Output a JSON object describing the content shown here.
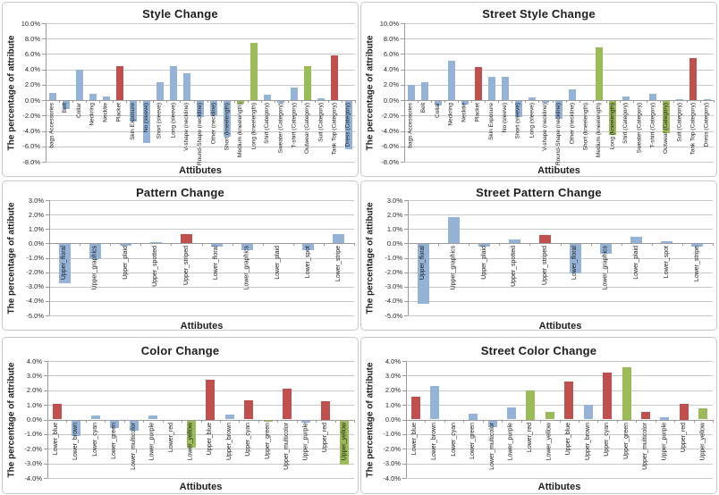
{
  "page": {
    "background": "#ffffff"
  },
  "palette": {
    "blue": "#95B3D7",
    "red": "#C0504D",
    "green": "#9BBB59",
    "grid": "#C9C9C9",
    "axis": "#9A9A9A",
    "panel_border": "#C9C9C9",
    "text": "#1F1F1F"
  },
  "chart_data": [
    {
      "id": "style-change",
      "type": "bar",
      "title": "Style Change",
      "ylabel": "The percentage of attribute",
      "xlabel": "Attibutes",
      "ylim": [
        -8,
        10
      ],
      "ytick_step": 2,
      "ytick_labels": [
        "10.0%",
        "8.0%",
        "6.0%",
        "4.0%",
        "2.0%",
        "0.0%",
        "-2.0%",
        "-4.0%",
        "-6.0%",
        "-8.0%"
      ],
      "grid": true,
      "legend": "none",
      "categories": [
        "bags Accessories",
        "Belt",
        "Collar",
        "Neckring",
        "Necktie",
        "Placket",
        "Skin Exposure",
        "No (sleeve)",
        "Short (sleeve)",
        "Long (sleeve)",
        "V-shape (neckline)",
        "Round-Shape (neckline)",
        "Other (neckline)",
        "Short (kneelength)",
        "Medium (kneelength)",
        "Long (kneelength)",
        "Shirt (Category)",
        "Sweater (Category)",
        "T-shirt (Category)",
        "Outwear (Category)",
        "Suit (Category)",
        "Tank Top (Category)",
        "Dress (Category)"
      ],
      "values": [
        0.9,
        -1.2,
        4.0,
        0.8,
        0.5,
        4.4,
        -2.8,
        -5.6,
        2.3,
        4.4,
        3.5,
        -2.2,
        -2.0,
        -4.7,
        -0.5,
        7.4,
        0.7,
        -0.4,
        1.6,
        4.4,
        0.3,
        5.8,
        -6.4
      ],
      "bar_colors": [
        "blue",
        "blue",
        "blue",
        "blue",
        "blue",
        "red",
        "blue",
        "blue",
        "blue",
        "blue",
        "blue",
        "blue",
        "blue",
        "blue",
        "green",
        "green",
        "blue",
        "blue",
        "blue",
        "green",
        "blue",
        "red",
        "blue"
      ]
    },
    {
      "id": "street-style-change",
      "type": "bar",
      "title": "Street Style Change",
      "ylabel": "The percentage of attribute",
      "xlabel": "Attibutes",
      "ylim": [
        -8,
        10
      ],
      "ytick_step": 2,
      "ytick_labels": [
        "10.0%",
        "8.0%",
        "6.0%",
        "4.0%",
        "2.0%",
        "0.0%",
        "-2.0%",
        "-4.0%",
        "-6.0%",
        "-8.0%"
      ],
      "grid": true,
      "legend": "none",
      "categories": [
        "bags Accessories",
        "Belt",
        "Collar",
        "Neckring",
        "Necktie",
        "Placket",
        "Skin Exposure",
        "No (sleeve)",
        "Short (sleeve)",
        "Long (sleeve)",
        "V-shape (neckline)",
        "Round-Shape (neckline)",
        "Other (neckline)",
        "Short (kneelength)",
        "Medium (kneelength)",
        "Long (kneelength)",
        "Shirt (Category)",
        "Sweater (Category)",
        "T-shirt (Category)",
        "Outwear (Category)",
        "Suit (Category)",
        "Tank Top (Category)",
        "Dress (Category)"
      ],
      "values": [
        2.0,
        2.3,
        -0.7,
        5.1,
        -0.6,
        4.3,
        3.0,
        3.0,
        -2.2,
        0.35,
        -0.4,
        -2.4,
        1.4,
        0.0,
        6.9,
        -4.5,
        0.45,
        -0.1,
        0.85,
        -4.3,
        0.15,
        5.5,
        0.1
      ],
      "bar_colors": [
        "blue",
        "blue",
        "blue",
        "blue",
        "blue",
        "red",
        "blue",
        "blue",
        "blue",
        "blue",
        "blue",
        "blue",
        "blue",
        "blue",
        "green",
        "green",
        "blue",
        "blue",
        "blue",
        "green",
        "blue",
        "red",
        "blue"
      ]
    },
    {
      "id": "pattern-change",
      "type": "bar",
      "title": "Pattern Change",
      "ylabel": "The percentage of attibute",
      "xlabel": "Attibutes",
      "ylim": [
        -5,
        3
      ],
      "ytick_step": 1,
      "ytick_labels": [
        "3.0%",
        "2.0%",
        "1.0%",
        "0.0%",
        "-1.0%",
        "-2.0%",
        "-3.0%",
        "-4.0%",
        "-5.0%"
      ],
      "grid": true,
      "legend": "none",
      "categories": [
        "Upper_floral",
        "Upper_graphics",
        "Upper_plaid",
        "Upper_spotted",
        "Upper_striped",
        "Lower_floral",
        "Lower_graphics",
        "Lower_plaid",
        "Lower_spot",
        "Lower_stripe"
      ],
      "values": [
        -2.8,
        -1.1,
        -0.15,
        0.1,
        0.65,
        -0.2,
        -0.5,
        -0.05,
        -0.5,
        0.65
      ],
      "bar_colors": [
        "blue",
        "blue",
        "blue",
        "blue",
        "red",
        "blue",
        "blue",
        "blue",
        "blue",
        "blue"
      ]
    },
    {
      "id": "street-pattern-change",
      "type": "bar",
      "title": "Street Pattern Change",
      "ylabel": "The percentage of attibute",
      "xlabel": "Attibutes",
      "ylim": [
        -5,
        3
      ],
      "ytick_step": 1,
      "ytick_labels": [
        "3.0%",
        "2.0%",
        "1.0%",
        "0.0%",
        "-1.0%",
        "-2.0%",
        "-3.0%",
        "-4.0%",
        "-5.0%"
      ],
      "grid": true,
      "legend": "none",
      "categories": [
        "Upper_floral",
        "Upper_graphics",
        "Upper_plaid",
        "Upper_spotted",
        "Upper_striped",
        "Lower_floral",
        "Lower_graphics",
        "Lower_plaid",
        "Lower_spot",
        "Lower_stripe"
      ],
      "values": [
        -4.2,
        1.8,
        -0.2,
        0.25,
        0.6,
        -2.1,
        -0.75,
        0.45,
        0.15,
        -0.2
      ],
      "bar_colors": [
        "blue",
        "blue",
        "blue",
        "blue",
        "red",
        "blue",
        "blue",
        "blue",
        "blue",
        "blue"
      ]
    },
    {
      "id": "color-change",
      "type": "bar",
      "title": "Color Change",
      "ylabel": "The percentage of attribute",
      "xlabel": "Attibutes",
      "ylim": [
        -4,
        4
      ],
      "ytick_step": 1,
      "ytick_labels": [
        "4.0%",
        "3.0%",
        "2.0%",
        "1.0%",
        "0.0%",
        "-1.0%",
        "-2.0%",
        "-3.0%",
        "-4.0%"
      ],
      "grid": true,
      "legend": "none",
      "categories": [
        "Lower_blue",
        "Lower_brown",
        "Lower_cyan",
        "Lower_green",
        "Lower_multicolor",
        "Lower_purple",
        "Lower_red",
        "Lower_yellow",
        "Upper_blue",
        "Upper_brown",
        "Upper_cyan",
        "Upper_green",
        "Upper_multicolor",
        "Upper_purple",
        "Upper_red",
        "Upper_yellow"
      ],
      "values": [
        1.05,
        -1.1,
        0.25,
        -0.6,
        -0.75,
        0.3,
        -0.1,
        -1.9,
        2.75,
        0.35,
        1.3,
        -0.15,
        2.1,
        -0.2,
        1.25,
        -3.1
      ],
      "bar_colors": [
        "red",
        "blue",
        "blue",
        "blue",
        "blue",
        "blue",
        "green",
        "green",
        "red",
        "blue",
        "red",
        "green",
        "red",
        "blue",
        "red",
        "green"
      ]
    },
    {
      "id": "street-color-change",
      "type": "bar",
      "title": "Street Color Change",
      "ylabel": "The percentage of attribute",
      "xlabel": "Attibutes",
      "ylim": [
        -4,
        4
      ],
      "ytick_step": 1,
      "ytick_labels": [
        "4.0%",
        "3.0%",
        "2.0%",
        "1.0%",
        "0.0%",
        "-1.0%",
        "-2.0%",
        "-3.0%",
        "-4.0%"
      ],
      "grid": true,
      "legend": "none",
      "categories": [
        "Lower_blue",
        "Lower_brown",
        "Lower_cyan",
        "Lower_green",
        "Lower_multicolor",
        "Lower_purple",
        "Lower_red",
        "Lower_yellow",
        "Upper_blue",
        "Upper_brown",
        "Upper_cyan",
        "Upper_green",
        "Upper_multicolor",
        "Upper_purple",
        "Upper_red",
        "Upper_yellow"
      ],
      "values": [
        1.55,
        2.3,
        0.0,
        0.4,
        -0.5,
        0.85,
        2.0,
        0.5,
        2.6,
        1.0,
        3.2,
        3.6,
        0.5,
        0.15,
        1.1,
        0.75
      ],
      "bar_colors": [
        "red",
        "blue",
        "blue",
        "blue",
        "blue",
        "blue",
        "green",
        "green",
        "red",
        "blue",
        "red",
        "green",
        "red",
        "blue",
        "red",
        "green"
      ]
    }
  ]
}
